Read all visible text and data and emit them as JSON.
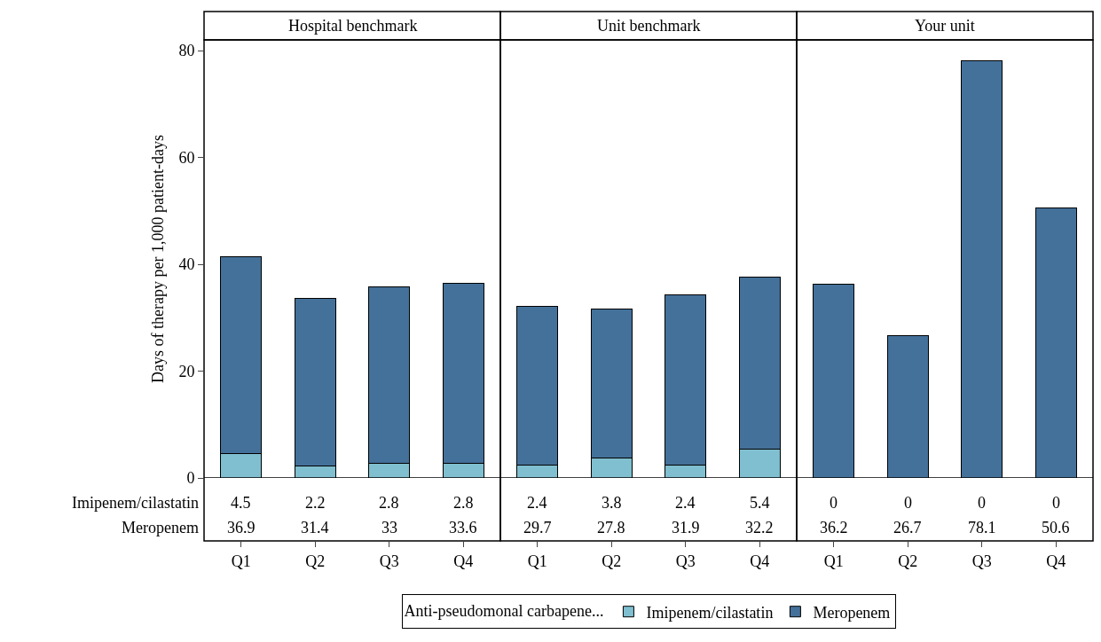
{
  "chart_data": [
    {
      "type": "bar",
      "title": "Hospital benchmark",
      "ylabel": "Days of therapy per 1,000 patient-days",
      "categories": [
        "Q1",
        "Q2",
        "Q3",
        "Q4"
      ],
      "stacked": true,
      "data_labels": true,
      "ylim": [
        0,
        82
      ],
      "yticks": [
        0,
        20,
        40,
        60,
        80
      ],
      "legend": "bottom",
      "legend_title": "Anti-pseudomonal carbapene...",
      "series": [
        {
          "name": "Imipenem/cilastatin",
          "color": "#7fbfcf",
          "values": [
            4.5,
            2.2,
            2.8,
            2.8
          ]
        },
        {
          "name": "Meropenem",
          "color": "#44719a",
          "values": [
            36.9,
            31.4,
            33,
            33.6
          ]
        }
      ]
    },
    {
      "type": "bar",
      "title": "Unit benchmark",
      "categories": [
        "Q1",
        "Q2",
        "Q3",
        "Q4"
      ],
      "stacked": true,
      "data_labels": true,
      "ylim": [
        0,
        82
      ],
      "yticks": [
        0,
        20,
        40,
        60,
        80
      ],
      "tick_labels": "x",
      "series": [
        {
          "color": "#7fbfcf",
          "values": [
            2.4,
            3.8,
            2.4,
            5.4
          ]
        },
        {
          "color": "#44719a",
          "values": [
            29.7,
            27.8,
            31.9,
            32.2
          ]
        }
      ]
    },
    {
      "type": "bar",
      "title": "Your unit",
      "categories": [
        "Q1",
        "Q2",
        "Q3",
        "Q4"
      ],
      "stacked": true,
      "data_labels": true,
      "ylim": [
        0,
        82
      ],
      "yticks": [
        0,
        20,
        40,
        60,
        80
      ],
      "tick_labels": "x",
      "series": [
        {
          "color": "#7fbfcf",
          "values": [
            0,
            0,
            0,
            0
          ]
        },
        {
          "color": "#44719a",
          "values": [
            36.2,
            26.7,
            78.1,
            50.6
          ]
        }
      ]
    }
  ]
}
